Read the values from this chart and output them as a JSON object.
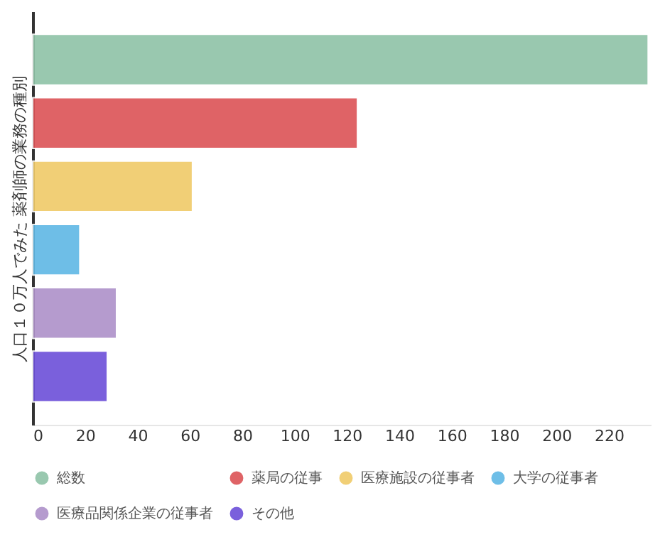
{
  "chart_data": {
    "type": "bar",
    "orientation": "horizontal",
    "ylabel": "人口１０万人でみた 薬剤師の業務の種別",
    "categories": [
      null
    ],
    "series": [
      {
        "name": "総数",
        "color": "#8ec3a7",
        "values": [
          235
        ]
      },
      {
        "name": "薬局の従事",
        "color": "#dc5356",
        "values": [
          124
        ]
      },
      {
        "name": "医療施設の従事者",
        "color": "#f0ca68",
        "values": [
          61
        ]
      },
      {
        "name": "大学の従事者",
        "color": "#5fb7e5",
        "values": [
          18
        ]
      },
      {
        "name": "医療品関係企業の従事者",
        "color": "#ad91c9",
        "values": [
          32
        ]
      },
      {
        "name": "その他",
        "color": "#6c4fd9",
        "values": [
          28.5
        ]
      }
    ],
    "xlim": [
      0,
      236
    ],
    "xticks": [
      0,
      20,
      40,
      60,
      80,
      100,
      120,
      140,
      160,
      180,
      200,
      220
    ],
    "tick_labels": "x",
    "grid": false,
    "legend": "bottom"
  }
}
